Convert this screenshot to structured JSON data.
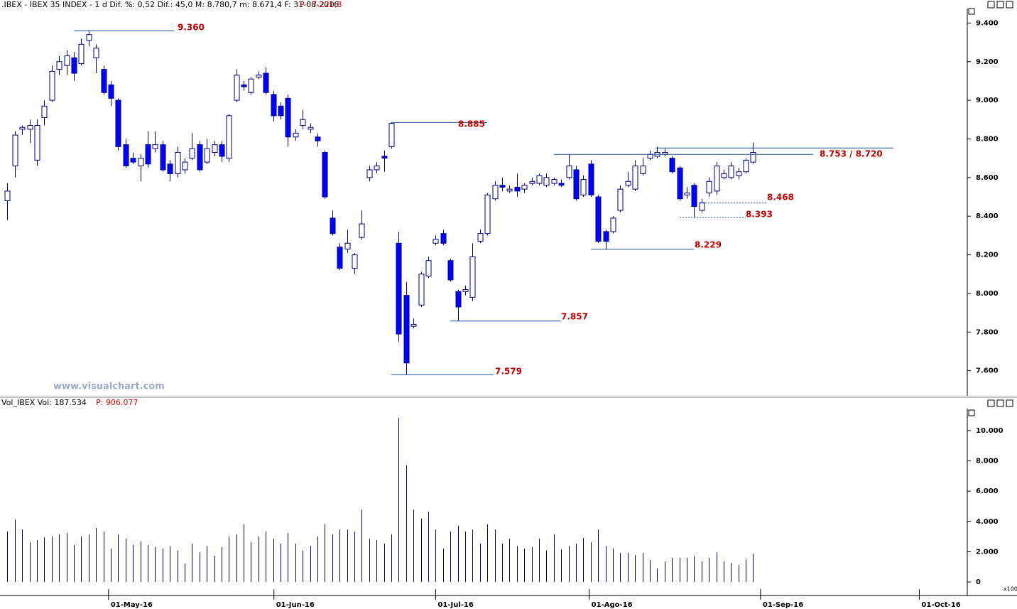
{
  "chart_data": [
    {
      "type": "candlestick",
      "header": ".IBEX - IBEX 35 INDEX - 1 d  Dif. %: 0,52  Dif.: 45,0  M: 8.780,7  m: 8.671,4  F: 31-08-2016",
      "header_extra": "P : 7.220,8",
      "watermark": "www.visualchart.com",
      "up_color": "#ffffff",
      "down_color": "#0000ff",
      "edge_color": "#000080",
      "xlim": [
        -1,
        130
      ],
      "ylim": [
        7470,
        9475
      ],
      "yticks": [
        {
          "value": 7600,
          "label": "7.600"
        },
        {
          "value": 7800,
          "label": "7.800"
        },
        {
          "value": 8000,
          "label": "8.000"
        },
        {
          "value": 8200,
          "label": "8.200"
        },
        {
          "value": 8400,
          "label": "8.400"
        },
        {
          "value": 8600,
          "label": "8.600"
        },
        {
          "value": 8800,
          "label": "8.800"
        },
        {
          "value": 9000,
          "label": "9.000"
        },
        {
          "value": 9200,
          "label": "9.200"
        },
        {
          "value": 9400,
          "label": "9.400"
        }
      ],
      "open": [
        8480,
        8660,
        8850,
        8850,
        8690,
        8910,
        9000,
        9160,
        9180,
        9220,
        9190,
        9310,
        9220,
        9160,
        9080,
        9000,
        8770,
        8700,
        8660,
        8770,
        8750,
        8770,
        8670,
        8620,
        8640,
        8700,
        8770,
        8680,
        8730,
        8770,
        8700,
        9000,
        9080,
        9040,
        9120,
        9140,
        9030,
        8970,
        9010,
        8810,
        8870,
        8850,
        8810,
        8730,
        8390,
        8240,
        8230,
        8130,
        8290,
        8600,
        8640,
        8710,
        8760,
        8260,
        7990,
        7830,
        7940,
        8090,
        8260,
        8310,
        8170,
        8010,
        8010,
        7980,
        8270,
        8310,
        8490,
        8560,
        8530,
        8550,
        8540,
        8570,
        8570,
        8560,
        8570,
        8570,
        8600,
        8640,
        8510,
        8670,
        8500,
        8320,
        8320,
        8430,
        8560,
        8540,
        8620,
        8700,
        8710,
        8720,
        8700,
        8650,
        8510,
        8560,
        8430,
        8520,
        8530,
        8600,
        8600,
        8610,
        8630,
        8680
      ],
      "high": [
        8570,
        8840,
        8870,
        8900,
        8900,
        9000,
        9180,
        9230,
        9260,
        9250,
        9320,
        9360,
        9290,
        9180,
        9100,
        9010,
        8800,
        8730,
        8720,
        8840,
        8840,
        8790,
        8690,
        8760,
        8700,
        8830,
        8790,
        8800,
        8790,
        8790,
        8930,
        9160,
        9100,
        9120,
        9150,
        9170,
        9050,
        8990,
        9030,
        8850,
        8950,
        8880,
        8830,
        8740,
        8430,
        8260,
        8330,
        8210,
        8430,
        8660,
        8680,
        8740,
        8885,
        8320,
        8060,
        7870,
        8110,
        8190,
        8300,
        8330,
        8180,
        8020,
        8040,
        8260,
        8330,
        8520,
        8580,
        8600,
        8560,
        8620,
        8570,
        8600,
        8620,
        8620,
        8600,
        8590,
        8720,
        8660,
        8610,
        8690,
        8510,
        8330,
        8400,
        8560,
        8630,
        8690,
        8700,
        8740,
        8760,
        8750,
        8710,
        8660,
        8550,
        8570,
        8490,
        8600,
        8680,
        8640,
        8680,
        8650,
        8700,
        8781
      ],
      "low": [
        8380,
        8600,
        8820,
        8780,
        8660,
        8870,
        8990,
        9130,
        9130,
        9100,
        9180,
        9280,
        9140,
        9030,
        8970,
        8740,
        8650,
        8670,
        8580,
        8650,
        8730,
        8630,
        8580,
        8600,
        8620,
        8690,
        8630,
        8670,
        8710,
        8680,
        8680,
        8990,
        9050,
        9030,
        9110,
        9030,
        8890,
        8900,
        8760,
        8790,
        8850,
        8830,
        8760,
        8490,
        8300,
        8120,
        8210,
        8100,
        8280,
        8580,
        8620,
        8630,
        8750,
        7750,
        7579,
        7820,
        7930,
        8080,
        8250,
        8250,
        8060,
        7857,
        7990,
        7960,
        8260,
        8300,
        8480,
        8530,
        8520,
        8500,
        8520,
        8560,
        8560,
        8550,
        8560,
        8550,
        8590,
        8480,
        8500,
        8500,
        8260,
        8229,
        8310,
        8420,
        8550,
        8530,
        8610,
        8690,
        8700,
        8710,
        8620,
        8480,
        8490,
        8393,
        8420,
        8500,
        8510,
        8590,
        8590,
        8590,
        8620,
        8671
      ],
      "close": [
        8530,
        8820,
        8860,
        8870,
        8870,
        8970,
        9150,
        9200,
        9230,
        9140,
        9290,
        9340,
        9270,
        9040,
        9010,
        8760,
        8660,
        8680,
        8700,
        8670,
        8770,
        8640,
        8620,
        8730,
        8680,
        8750,
        8640,
        8750,
        8770,
        8710,
        8920,
        9130,
        9070,
        9110,
        9130,
        9040,
        8920,
        8920,
        8810,
        8830,
        8900,
        8860,
        8790,
        8500,
        8310,
        8130,
        8260,
        8200,
        8360,
        8640,
        8660,
        8700,
        8880,
        7790,
        7640,
        7840,
        8100,
        8170,
        8280,
        8260,
        8070,
        7930,
        8020,
        8190,
        8310,
        8510,
        8560,
        8550,
        8540,
        8530,
        8560,
        8580,
        8610,
        8600,
        8590,
        8560,
        8660,
        8490,
        8590,
        8510,
        8270,
        8270,
        8390,
        8540,
        8580,
        8660,
        8660,
        8720,
        8730,
        8730,
        8630,
        8490,
        8520,
        8450,
        8470,
        8580,
        8660,
        8620,
        8660,
        8630,
        8690,
        8730
      ],
      "annotations": [
        {
          "text": "9.360",
          "levels": [
            9360
          ]
        },
        {
          "text": "8.885",
          "levels": [
            8885
          ]
        },
        {
          "text": "8.753 / 8.720",
          "levels": [
            8753,
            8720
          ]
        },
        {
          "text": "8.468",
          "levels": [
            8468
          ]
        },
        {
          "text": "8.393",
          "levels": [
            8393
          ]
        },
        {
          "text": "8.229",
          "levels": [
            8229
          ]
        },
        {
          "text": "7.857",
          "levels": [
            7857
          ]
        },
        {
          "text": "7.579",
          "levels": [
            7579
          ]
        }
      ]
    },
    {
      "type": "bar",
      "header": "Vol_IBEX Vol: 187.534",
      "header_extra": "P: 906.077",
      "axis_unit": "x100",
      "color": "#000080",
      "xlim": [
        -1,
        130
      ],
      "xticks": [
        {
          "value": 13.7,
          "label": "01-May-16"
        },
        {
          "value": 36.1,
          "label": "01-Jun-16"
        },
        {
          "value": 58.0,
          "label": "01-Jul-16"
        },
        {
          "value": 78.8,
          "label": "01-Ago-16"
        },
        {
          "value": 102.0,
          "label": "01-Sep-16"
        },
        {
          "value": 123.5,
          "label": "01-Oct-16"
        }
      ],
      "ylim": [
        -890,
        11450
      ],
      "yticks": [
        0,
        {
          "value": 2000,
          "label": "2.000"
        },
        {
          "value": 4000,
          "label": "4.000"
        },
        {
          "value": 6000,
          "label": "6.000"
        },
        {
          "value": 8000,
          "label": "8.000"
        },
        {
          "value": 10000,
          "label": "10.000"
        }
      ],
      "values": [
        3330,
        4130,
        3470,
        2630,
        2770,
        2960,
        3000,
        3150,
        3240,
        2440,
        3000,
        3150,
        3570,
        3330,
        2210,
        3150,
        2860,
        2440,
        2680,
        2440,
        2300,
        2210,
        2390,
        2070,
        1220,
        2540,
        1970,
        2390,
        1740,
        2300,
        3000,
        3150,
        3800,
        2630,
        3000,
        3330,
        2860,
        2540,
        3240,
        2540,
        2070,
        2390,
        3000,
        3800,
        3150,
        3470,
        3470,
        3330,
        4790,
        2860,
        2770,
        2540,
        3150,
        10850,
        7700,
        4790,
        4180,
        4650,
        3470,
        2210,
        3330,
        3710,
        3330,
        3470,
        2540,
        3800,
        3470,
        2540,
        2860,
        2390,
        2210,
        2300,
        2860,
        2070,
        3150,
        2160,
        2390,
        2540,
        2910,
        2630,
        3470,
        2390,
        2210,
        1920,
        1920,
        1780,
        1920,
        1460,
        890,
        1360,
        1600,
        1600,
        1600,
        1690,
        1360,
        1600,
        1970,
        1360,
        1270,
        1130,
        1500,
        1880
      ]
    }
  ]
}
